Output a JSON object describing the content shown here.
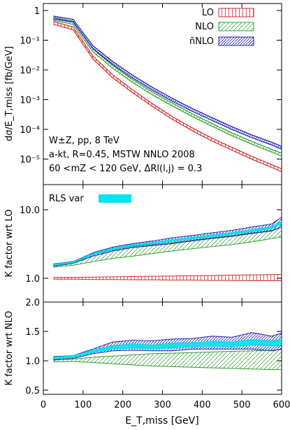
{
  "chart_data": [
    {
      "type": "line",
      "panel": "top",
      "ylabel": "dσ/E_T,miss [fb/GeV]",
      "yscale": "log",
      "ylim": [
        2e-06,
        1.5
      ],
      "xlim": [
        0,
        600
      ],
      "ytick_labels": [
        "1",
        "10⁻¹",
        "10⁻²",
        "10⁻³",
        "10⁻⁴",
        "10⁻⁵"
      ],
      "legend_position": "top-right",
      "legend_labels": [
        "LO",
        "NLO",
        "n̄NLO"
      ],
      "annotations": [
        "W±Z, pp, 8 TeV",
        "a-kt, R=0.45, MSTW NNLO 2008",
        "60 <mZ < 120 GeV, ΔRl(l,j) = 0.3"
      ],
      "x": [
        25,
        75,
        125,
        175,
        225,
        275,
        325,
        375,
        425,
        475,
        525,
        575,
        600
      ],
      "series": [
        {
          "name": "LO",
          "color": "#d62728",
          "values": [
            0.38,
            0.25,
            0.026,
            0.006,
            0.0019,
            0.00065,
            0.00024,
            0.0001,
            4.5e-05,
            2.2e-05,
            1.1e-05,
            5.8e-06,
            4.2e-06
          ]
        },
        {
          "name": "NLO",
          "color": "#2ca02c",
          "values": [
            0.52,
            0.38,
            0.045,
            0.0125,
            0.0042,
            0.0016,
            0.00068,
            0.0003,
            0.00014,
            6.8e-05,
            3.5e-05,
            1.9e-05,
            1.4e-05
          ]
        },
        {
          "name": "n̄NLO",
          "color": "#1f1fb4",
          "values": [
            0.58,
            0.45,
            0.058,
            0.017,
            0.0059,
            0.0023,
            0.00098,
            0.00045,
            0.00022,
            0.00011,
            5.8e-05,
            3.3e-05,
            2.4e-05
          ]
        }
      ]
    },
    {
      "type": "line",
      "panel": "middle",
      "ylabel": "K factor wrt LO",
      "yscale": "log",
      "ylim": [
        0.85,
        13
      ],
      "xlim": [
        0,
        600
      ],
      "ytick_labels": [
        "10.0",
        "1.0"
      ],
      "legend_labels": [
        "RLS var"
      ],
      "x": [
        25,
        75,
        125,
        175,
        225,
        275,
        325,
        375,
        425,
        475,
        525,
        575,
        600
      ],
      "bands": [
        {
          "name": "LO",
          "low": [
            0.97,
            0.97,
            0.96,
            0.96,
            0.95,
            0.95,
            0.94,
            0.94,
            0.93,
            0.93,
            0.92,
            0.92,
            0.92
          ],
          "high": [
            1.03,
            1.03,
            1.04,
            1.05,
            1.06,
            1.07,
            1.08,
            1.09,
            1.1,
            1.11,
            1.12,
            1.13,
            1.14
          ]
        },
        {
          "name": "NLO",
          "low": [
            1.45,
            1.55,
            1.75,
            1.95,
            2.1,
            2.3,
            2.5,
            2.7,
            2.9,
            3.1,
            3.4,
            3.8,
            4.0
          ],
          "high": [
            1.5,
            1.65,
            2.2,
            2.6,
            2.9,
            3.1,
            3.3,
            3.6,
            3.9,
            4.2,
            4.6,
            5.0,
            5.6
          ]
        },
        {
          "name": "n̄NLO",
          "low": [
            1.5,
            1.65,
            2.1,
            2.5,
            2.8,
            3.0,
            3.2,
            3.5,
            3.8,
            4.1,
            4.5,
            4.9,
            5.6
          ],
          "high": [
            1.62,
            1.75,
            2.35,
            2.85,
            3.2,
            3.5,
            3.9,
            4.2,
            4.6,
            5.0,
            5.6,
            6.2,
            7.8
          ]
        },
        {
          "name": "RLS var",
          "low": [
            1.54,
            1.68,
            2.2,
            2.62,
            2.95,
            3.2,
            3.45,
            3.75,
            4.05,
            4.4,
            4.8,
            5.3,
            6.2
          ],
          "high": [
            1.6,
            1.73,
            2.3,
            2.75,
            3.1,
            3.35,
            3.65,
            3.95,
            4.3,
            4.65,
            5.1,
            5.7,
            6.8
          ]
        }
      ]
    },
    {
      "type": "line",
      "panel": "bottom",
      "ylabel": "K factor wrt NLO",
      "xlabel": "E_T,miss [GeV]",
      "yscale": "linear",
      "ylim": [
        0.4,
        2.1
      ],
      "xlim": [
        0,
        600
      ],
      "ytick_labels": [
        "2.0",
        "1.5",
        "1.0",
        "0.5"
      ],
      "xtick_labels": [
        "0",
        "100",
        "200",
        "300",
        "400",
        "500",
        "600"
      ],
      "x": [
        25,
        75,
        125,
        175,
        225,
        275,
        325,
        375,
        425,
        475,
        525,
        575,
        600
      ],
      "bands": [
        {
          "name": "NLO",
          "low": [
            0.98,
            0.99,
            0.97,
            0.95,
            0.93,
            0.91,
            0.9,
            0.89,
            0.88,
            0.87,
            0.86,
            0.85,
            0.85
          ],
          "high": [
            1.02,
            1.03,
            1.06,
            1.08,
            1.1,
            1.12,
            1.13,
            1.14,
            1.15,
            1.16,
            1.17,
            1.18,
            1.19
          ]
        },
        {
          "name": "n̄NLO",
          "low": [
            1.01,
            1.04,
            1.12,
            1.17,
            1.18,
            1.17,
            1.17,
            1.2,
            1.2,
            1.2,
            1.2,
            1.17,
            1.2
          ],
          "high": [
            1.07,
            1.09,
            1.2,
            1.32,
            1.35,
            1.34,
            1.37,
            1.38,
            1.42,
            1.4,
            1.48,
            1.42,
            1.47
          ]
        },
        {
          "name": "RLS var",
          "low": [
            1.03,
            1.06,
            1.14,
            1.2,
            1.22,
            1.2,
            1.22,
            1.24,
            1.25,
            1.24,
            1.27,
            1.25,
            1.27
          ],
          "high": [
            1.06,
            1.09,
            1.18,
            1.26,
            1.29,
            1.27,
            1.3,
            1.31,
            1.33,
            1.32,
            1.36,
            1.34,
            1.37
          ]
        }
      ]
    }
  ]
}
